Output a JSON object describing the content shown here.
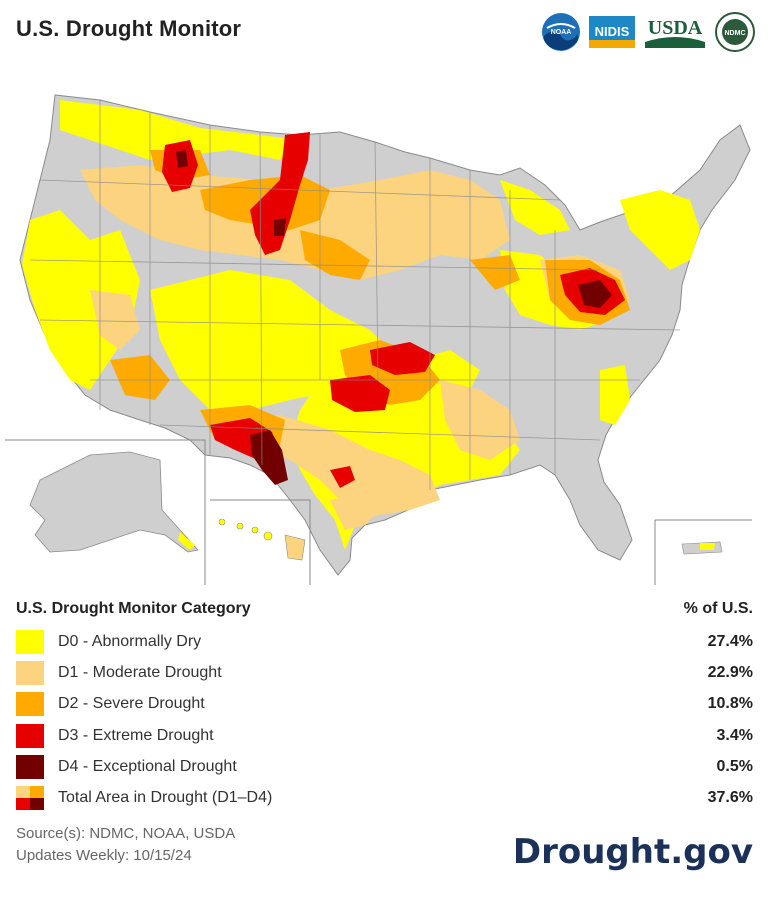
{
  "header": {
    "title": "U.S. Drought Monitor",
    "logos": [
      {
        "name": "noaa",
        "text": "NOAA",
        "color": "#1d6fb8"
      },
      {
        "name": "nidis",
        "text": "NIDIS",
        "color": "#1e88c7"
      },
      {
        "name": "usda",
        "text": "USDA",
        "color": "#1b5e3b"
      },
      {
        "name": "ndmc",
        "text": "NDMC",
        "color": "#2d5a3a"
      }
    ]
  },
  "legend": {
    "heading": "U.S. Drought Monitor Category",
    "pct_heading": "% of U.S.",
    "rows": [
      {
        "label": "D0 - Abnormally Dry",
        "pct": "27.4%",
        "color": "#ffff00"
      },
      {
        "label": "D1 - Moderate Drought",
        "pct": "22.9%",
        "color": "#fcd37f"
      },
      {
        "label": "D2 - Severe Drought",
        "pct": "10.8%",
        "color": "#ffaa00"
      },
      {
        "label": "D3 - Extreme Drought",
        "pct": "3.4%",
        "color": "#e60000"
      },
      {
        "label": "D4 - Exceptional Drought",
        "pct": "0.5%",
        "color": "#730000"
      },
      {
        "label": "Total Area in Drought (D1–D4)",
        "pct": "37.6%",
        "color": "#fcd37f"
      }
    ]
  },
  "footer": {
    "sources": "Source(s): NDMC, NOAA, USDA",
    "updates": "Updates Weekly: 10/15/24",
    "brand": "Drought.gov"
  },
  "map_colors": {
    "none": "#cfcfcf",
    "d0": "#ffff00",
    "d1": "#fcd37f",
    "d2": "#ffaa00",
    "d3": "#e60000",
    "d4": "#730000",
    "border": "#8a8a8a"
  }
}
